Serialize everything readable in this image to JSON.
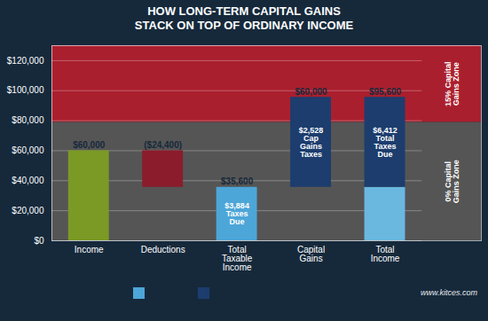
{
  "chart_data": {
    "type": "bar",
    "title": "HOW LONG-TERM CAPITAL GAINS",
    "subtitle": "STACK ON TOP OF ORDINARY INCOME",
    "caption": "www.kitces.com",
    "background": "#16293b",
    "categories": [
      "Income",
      "Deductions",
      "Total\nTaxable\nIncome",
      "Capital\nGains",
      "Total\nIncome"
    ],
    "series": [
      {
        "values": [
          60000,
          24400,
          35600,
          null,
          35600
        ],
        "bottoms": [
          0,
          35600,
          0,
          null,
          0
        ],
        "colors": [
          "#7a9a25",
          "#8b1c2c",
          "#4da6d8",
          null,
          "#6ab8e0"
        ]
      },
      {
        "values": [
          null,
          null,
          null,
          60000,
          60000
        ],
        "bottoms": [
          null,
          null,
          null,
          35600,
          35600
        ],
        "color": "#1c3d6e"
      }
    ],
    "bar_labels": [
      "$60,000",
      "($24,400)",
      "$35,600",
      "$60,000",
      "$95,600"
    ],
    "annotations": [
      {
        "category": "Total\nTaxable\nIncome",
        "text": "$3,884\nTaxes\nDue"
      },
      {
        "category": "Capital\nGains",
        "text": "$2,528\nCap\nGains\nTaxes"
      },
      {
        "category": "Total\nIncome",
        "text": "$6,412\nTotal\nTaxes\nDue"
      }
    ],
    "zones": [
      {
        "label": "0% Capital\nGains Zone",
        "from": 0,
        "to": 78950,
        "color": "#555555"
      },
      {
        "label": "15% Capital\nGains Zone",
        "from": 78950,
        "to": 130000,
        "color": "#aa1f2e"
      }
    ],
    "legend": "bottom",
    "legend_colors": [
      "#4da6d8",
      "#1c3d6e"
    ],
    "ylim": [
      0,
      130000
    ],
    "yticks": [
      {
        "value": 0,
        "label": "$0"
      },
      {
        "value": 20000,
        "label": "$20,000"
      },
      {
        "value": 40000,
        "label": "$40,000"
      },
      {
        "value": 60000,
        "label": "$60,000"
      },
      {
        "value": 80000,
        "label": "$80,000"
      },
      {
        "value": 100000,
        "label": "$100,000"
      },
      {
        "value": 120000,
        "label": "$120,000"
      }
    ],
    "grid": true
  }
}
